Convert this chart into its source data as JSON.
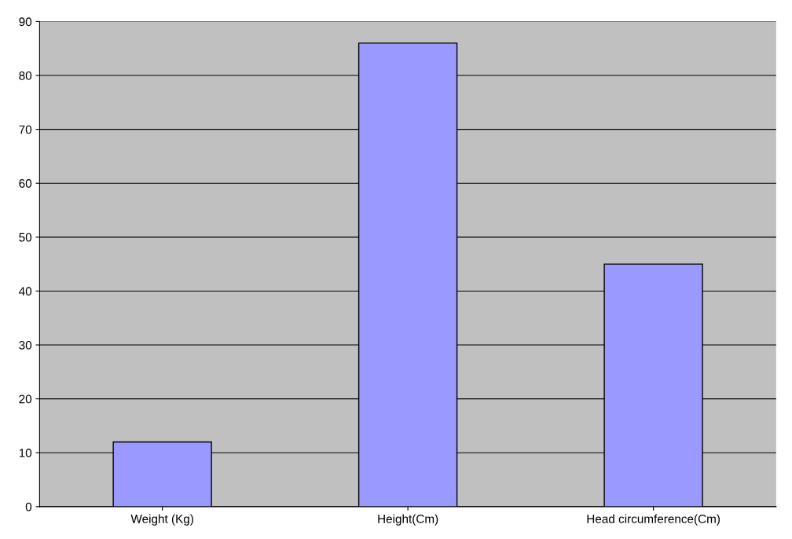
{
  "chart_data": {
    "type": "bar",
    "categories": [
      "Weight (Kg)",
      "Height(Cm)",
      "Head circumference(Cm)"
    ],
    "values": [
      12,
      86,
      45
    ],
    "color": "#9999ff",
    "ylim": [
      0,
      90
    ],
    "yticks": [
      0,
      10,
      20,
      30,
      40,
      50,
      60,
      70,
      80,
      90
    ],
    "grid": "y"
  }
}
